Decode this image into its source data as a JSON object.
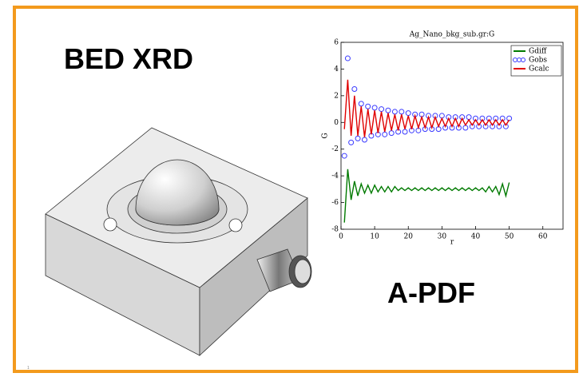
{
  "slide": {
    "title": "BED XRD",
    "label": "A-PDF",
    "page_number": "1"
  },
  "chart_data": {
    "type": "line",
    "title": "Ag_Nano_bkg_sub.gr:G",
    "x_label": "r",
    "y_label": "G",
    "x": [
      1,
      2,
      3,
      4,
      5,
      6,
      7,
      8,
      9,
      10,
      11,
      12,
      13,
      14,
      15,
      16,
      17,
      18,
      19,
      20,
      21,
      22,
      23,
      24,
      25,
      26,
      27,
      28,
      29,
      30,
      31,
      32,
      33,
      34,
      35,
      36,
      37,
      38,
      39,
      40,
      41,
      42,
      43,
      44,
      45,
      46,
      47,
      48,
      49,
      50
    ],
    "series": [
      {
        "name": "Gdiff",
        "color": "#007a00",
        "marker": "line",
        "values": [
          -7.5,
          -3.5,
          -5.8,
          -4.4,
          -5.5,
          -4.6,
          -5.3,
          -4.7,
          -5.3,
          -4.7,
          -5.2,
          -4.8,
          -5.2,
          -4.8,
          -5.2,
          -4.8,
          -5.1,
          -4.9,
          -5.1,
          -4.9,
          -5.1,
          -4.9,
          -5.1,
          -4.9,
          -5.1,
          -4.9,
          -5.1,
          -4.9,
          -5.1,
          -4.9,
          -5.1,
          -4.9,
          -5.1,
          -4.9,
          -5.1,
          -4.9,
          -5.1,
          -4.9,
          -5.1,
          -4.9,
          -5.1,
          -4.9,
          -5.2,
          -4.8,
          -5.2,
          -4.8,
          -5.4,
          -4.6,
          -5.5,
          -4.5
        ]
      },
      {
        "name": "Gobs",
        "color": "#3a3aff",
        "marker": "circle",
        "values": [
          -2.5,
          4.8,
          -1.5,
          2.5,
          -1.2,
          1.4,
          -1.3,
          1.2,
          -1.0,
          1.1,
          -0.9,
          1.0,
          -0.9,
          0.9,
          -0.8,
          0.8,
          -0.7,
          0.8,
          -0.7,
          0.7,
          -0.6,
          0.6,
          -0.6,
          0.6,
          -0.5,
          0.5,
          -0.5,
          0.5,
          -0.5,
          0.5,
          -0.4,
          0.4,
          -0.4,
          0.4,
          -0.4,
          0.4,
          -0.4,
          0.4,
          -0.3,
          0.3,
          -0.3,
          0.3,
          -0.3,
          0.3,
          -0.3,
          0.3,
          -0.3,
          0.3,
          -0.3,
          0.3
        ]
      },
      {
        "name": "Gcalc",
        "color": "#e00000",
        "marker": "line",
        "values": [
          -0.5,
          3.2,
          -1.0,
          2.0,
          -1.0,
          1.2,
          -1.1,
          1.0,
          -0.9,
          0.9,
          -0.8,
          0.8,
          -0.7,
          0.7,
          -0.6,
          0.6,
          -0.6,
          0.6,
          -0.5,
          0.5,
          -0.5,
          0.5,
          -0.4,
          0.4,
          -0.4,
          0.4,
          -0.4,
          0.4,
          -0.3,
          0.3,
          -0.3,
          0.3,
          -0.3,
          0.3,
          -0.3,
          0.3,
          -0.2,
          0.2,
          -0.2,
          0.2,
          -0.2,
          0.2,
          -0.2,
          0.2,
          -0.2,
          0.2,
          -0.2,
          0.2,
          -0.2,
          0.2
        ]
      }
    ],
    "xlim": [
      0,
      66
    ],
    "xticks": [
      0,
      10,
      20,
      30,
      40,
      50,
      60
    ],
    "ylim": [
      -8,
      6
    ],
    "yticks": [
      -8,
      -6,
      -4,
      -2,
      0,
      2,
      4,
      6
    ],
    "legend": "upper right"
  }
}
